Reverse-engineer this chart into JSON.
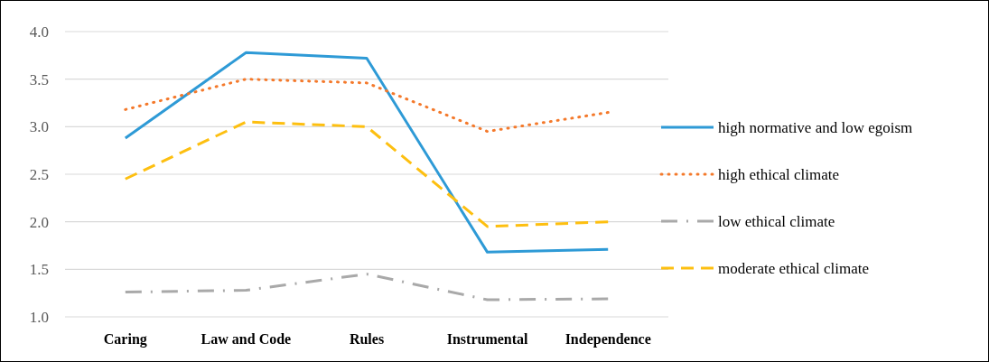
{
  "chart_data": {
    "type": "line",
    "categories": [
      "Caring",
      "Law and Code",
      "Rules",
      "Instrumental",
      "Independence"
    ],
    "series": [
      {
        "name": "high normative and low egoism",
        "color": "#2e9ad6",
        "line_style": "solid",
        "values": [
          2.88,
          3.78,
          3.72,
          1.68,
          1.71
        ]
      },
      {
        "name": "high ethical climate",
        "color": "#f4792b",
        "line_style": "dotted",
        "values": [
          3.18,
          3.5,
          3.46,
          2.95,
          3.15
        ]
      },
      {
        "name": "low ethical climate",
        "color": "#a9a9a9",
        "line_style": "dashdot",
        "values": [
          1.26,
          1.28,
          1.45,
          1.18,
          1.19
        ]
      },
      {
        "name": "moderate ethical climate",
        "color": "#fdbf10",
        "line_style": "dashed",
        "values": [
          2.45,
          3.05,
          3.0,
          1.95,
          2.0
        ]
      }
    ],
    "ylim": [
      1.0,
      4.0
    ],
    "yticks": [
      {
        "value": 1,
        "label": "1.0"
      },
      {
        "value": 1.5,
        "label": "1.5"
      },
      {
        "value": 2,
        "label": "2.0"
      },
      {
        "value": 2.5,
        "label": "2.5"
      },
      {
        "value": 3,
        "label": "3.0"
      },
      {
        "value": 3.5,
        "label": "3.5"
      },
      {
        "value": 4,
        "label": "4.0"
      }
    ],
    "grid": "y",
    "legend": "right",
    "marker": "none"
  }
}
